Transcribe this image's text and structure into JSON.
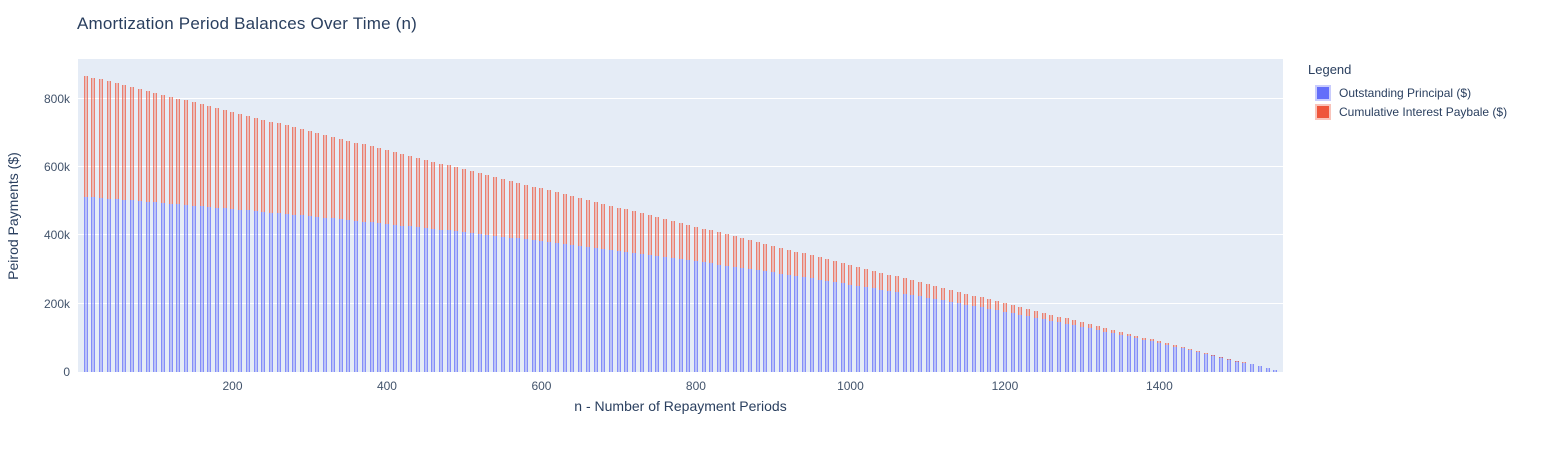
{
  "title": "Amortization Period Balances Over Time (n)",
  "colors": {
    "plot_background": "#E5ECF6",
    "paper_background": "#FFFFFF",
    "font": "#2A3F5F",
    "gridline": "#FFFFFF",
    "series_blue": "#636EFA",
    "series_red": "#EF553B"
  },
  "chart_data": {
    "type": "bar",
    "stacked": true,
    "title": "Amortization Period Balances Over Time (n)",
    "xlabel": "n - Number of Repayment Periods",
    "ylabel": "Peirod Payments ($)",
    "legend_title": "Legend",
    "legend_position": "outside-right-top",
    "grid": true,
    "xlim": [
      0,
      1560
    ],
    "ylim": [
      0,
      917000
    ],
    "xticks": [
      200,
      400,
      600,
      800,
      1000,
      1200,
      1400
    ],
    "yticks": [
      {
        "value": 0,
        "label": "0"
      },
      {
        "value": 200000,
        "label": "200k"
      },
      {
        "value": 400000,
        "label": "400k"
      },
      {
        "value": 600000,
        "label": "600k"
      },
      {
        "value": 800000,
        "label": "800k"
      }
    ],
    "x": [
      10,
      20,
      30,
      40,
      50,
      60,
      70,
      80,
      90,
      100,
      110,
      120,
      130,
      140,
      150,
      160,
      170,
      180,
      190,
      200,
      210,
      220,
      230,
      240,
      250,
      260,
      270,
      280,
      290,
      300,
      310,
      320,
      330,
      340,
      350,
      360,
      370,
      380,
      390,
      400,
      410,
      420,
      430,
      440,
      450,
      460,
      470,
      480,
      490,
      500,
      510,
      520,
      530,
      540,
      550,
      560,
      570,
      580,
      590,
      600,
      610,
      620,
      630,
      640,
      650,
      660,
      670,
      680,
      690,
      700,
      710,
      720,
      730,
      740,
      750,
      760,
      770,
      780,
      790,
      800,
      810,
      820,
      830,
      840,
      850,
      860,
      870,
      880,
      890,
      900,
      910,
      920,
      930,
      940,
      950,
      960,
      970,
      980,
      990,
      1000,
      1010,
      1020,
      1030,
      1040,
      1050,
      1060,
      1070,
      1080,
      1090,
      1100,
      1110,
      1120,
      1130,
      1140,
      1150,
      1160,
      1170,
      1180,
      1190,
      1200,
      1210,
      1220,
      1230,
      1240,
      1250,
      1260,
      1270,
      1280,
      1290,
      1300,
      1310,
      1320,
      1330,
      1340,
      1350,
      1360,
      1370,
      1380,
      1390,
      1400,
      1410,
      1420,
      1430,
      1440,
      1450,
      1460,
      1470,
      1480,
      1490,
      1500,
      1510,
      1520,
      1530,
      1540,
      1550
    ],
    "series": [
      {
        "name": "Outstanding Principal ($)",
        "color": "#636EFA",
        "values": [
          513300,
          511500,
          509700,
          507900,
          506100,
          504300,
          502500,
          500700,
          498800,
          496900,
          495100,
          493200,
          491300,
          489300,
          487400,
          485400,
          483500,
          481500,
          479500,
          477500,
          475500,
          473400,
          471400,
          469300,
          467200,
          465100,
          463000,
          460800,
          458700,
          456500,
          454300,
          452100,
          449900,
          447700,
          445400,
          443100,
          440900,
          438600,
          436200,
          433900,
          431500,
          429200,
          426800,
          424400,
          421900,
          419500,
          417000,
          414600,
          412100,
          409500,
          407000,
          404400,
          401900,
          399300,
          396700,
          394000,
          391400,
          388700,
          386000,
          383300,
          380500,
          377800,
          375000,
          372200,
          369400,
          366500,
          363700,
          360800,
          357900,
          355000,
          352000,
          349000,
          346100,
          343000,
          340000,
          336900,
          333900,
          330700,
          327600,
          324500,
          321300,
          318100,
          314800,
          311600,
          308300,
          305000,
          301700,
          298300,
          295000,
          291600,
          288100,
          284700,
          281200,
          277700,
          274200,
          270600,
          267000,
          263400,
          259800,
          256100,
          252400,
          248700,
          245000,
          241200,
          237400,
          233500,
          229700,
          225800,
          221900,
          217900,
          213900,
          209900,
          205900,
          201800,
          197700,
          193600,
          189400,
          185200,
          181000,
          176700,
          172500,
          168100,
          163800,
          159400,
          155000,
          150500,
          146000,
          141500,
          136900,
          132400,
          127700,
          123100,
          118400,
          113700,
          108900,
          104100,
          99300,
          94400,
          89500,
          84500,
          79500,
          74500,
          69500,
          64400,
          59200,
          54000,
          48800,
          43600,
          38300,
          33000,
          27600,
          22200,
          16700,
          11200,
          5700
        ]
      },
      {
        "name": "Cumulative Interest Paybale ($)",
        "color": "#EF553B",
        "values": [
          355100,
          351200,
          347400,
          343600,
          339800,
          336000,
          332200,
          328400,
          324700,
          320900,
          317200,
          313500,
          309800,
          306200,
          302500,
          298800,
          295200,
          291600,
          288000,
          284400,
          280800,
          277300,
          273700,
          270200,
          266700,
          263200,
          259700,
          256200,
          252800,
          249300,
          245900,
          242500,
          239100,
          235800,
          232400,
          229100,
          225800,
          222500,
          219200,
          215900,
          212700,
          209500,
          206200,
          203100,
          199900,
          196700,
          193600,
          190500,
          187400,
          184300,
          181200,
          178200,
          175100,
          172100,
          169200,
          166200,
          163200,
          160300,
          157400,
          154500,
          151700,
          148800,
          146000,
          143200,
          140400,
          137600,
          134900,
          132200,
          129500,
          126800,
          124200,
          121500,
          118900,
          116300,
          113800,
          111200,
          108700,
          106200,
          103700,
          101300,
          98900,
          96500,
          94100,
          91700,
          89400,
          87100,
          84800,
          82600,
          80400,
          78200,
          76000,
          73800,
          71700,
          69600,
          67500,
          65500,
          63500,
          61500,
          59500,
          57600,
          55700,
          53800,
          51900,
          50100,
          48300,
          46600,
          44800,
          43100,
          41400,
          39800,
          38200,
          36600,
          35000,
          33500,
          32000,
          30500,
          29100,
          27700,
          26300,
          24900,
          23600,
          22300,
          21100,
          19900,
          18700,
          17500,
          16400,
          15400,
          14300,
          13300,
          12300,
          11400,
          10500,
          9600,
          8800,
          8000,
          7200,
          6500,
          5800,
          5100,
          4500,
          3900,
          3400,
          2900,
          2400,
          2000,
          1600,
          1200,
          900,
          700,
          400,
          200,
          100,
          0,
          0
        ]
      }
    ]
  }
}
